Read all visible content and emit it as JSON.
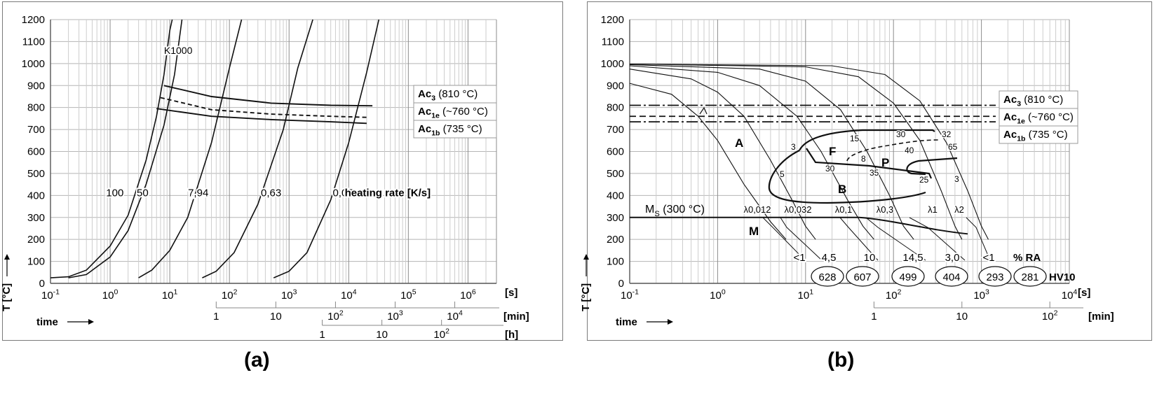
{
  "chart_data": [
    {
      "type": "line",
      "caption": "(a)",
      "ylabel": "T [°C]",
      "xlabel": "time",
      "ylim": [
        0,
        1200
      ],
      "yticks": [
        0,
        100,
        200,
        300,
        400,
        500,
        600,
        700,
        800,
        900,
        1000,
        1100,
        1200
      ],
      "xscale": "log",
      "xlim_s": [
        0.1,
        3000000
      ],
      "xtick_labels": [
        [
          "10",
          "-1"
        ],
        [
          "10",
          "0"
        ],
        [
          "10",
          "1"
        ],
        [
          "10",
          "2"
        ],
        [
          "10",
          "3"
        ],
        [
          "10",
          "4"
        ],
        [
          "10",
          "5"
        ],
        [
          "10",
          "6"
        ]
      ],
      "xunit": "[s]",
      "min_axis": {
        "ticks": [
          "1",
          "10",
          "10^2",
          "10^3",
          "10^4"
        ],
        "unit": "[min]"
      },
      "h_axis": {
        "ticks": [
          "1",
          "10",
          "10^2"
        ],
        "unit": "[h]"
      },
      "series": [
        {
          "name": "100",
          "points": [
            [
              0.1,
              25
            ],
            [
              0.2,
              30
            ],
            [
              0.4,
              60
            ],
            [
              1,
              170
            ],
            [
              2,
              310
            ],
            [
              4,
              560
            ],
            [
              6,
              760
            ],
            [
              8,
              950
            ],
            [
              10,
              1150
            ],
            [
              11,
              1200
            ]
          ]
        },
        {
          "name": "50",
          "points": [
            [
              0.2,
              25
            ],
            [
              0.4,
              40
            ],
            [
              1,
              120
            ],
            [
              2,
              240
            ],
            [
              4,
              450
            ],
            [
              8,
              720
            ],
            [
              12,
              950
            ],
            [
              16,
              1200
            ]
          ]
        },
        {
          "name": "7,94",
          "points": [
            [
              3,
              25
            ],
            [
              5,
              60
            ],
            [
              10,
              150
            ],
            [
              20,
              300
            ],
            [
              50,
              640
            ],
            [
              100,
              980
            ],
            [
              160,
              1200
            ]
          ]
        },
        {
          "name": "0,63",
          "points": [
            [
              35,
              25
            ],
            [
              60,
              55
            ],
            [
              120,
              140
            ],
            [
              300,
              360
            ],
            [
              800,
              700
            ],
            [
              1400,
              980
            ],
            [
              2500,
              1200
            ]
          ]
        },
        {
          "name": "0,05",
          "points": [
            [
              550,
              25
            ],
            [
              1000,
              55
            ],
            [
              2000,
              140
            ],
            [
              5000,
              380
            ],
            [
              10000,
              640
            ],
            [
              20000,
              960
            ],
            [
              32000,
              1200
            ]
          ]
        }
      ],
      "series_labels": [
        "100",
        "50",
        "7,94",
        "0,63",
        "0,05"
      ],
      "rate_label": "heating rate [K/s]",
      "curve_label": "K1000",
      "transformations": [
        {
          "name": "Ac3",
          "points": [
            [
              8,
              900
            ],
            [
              50,
              850
            ],
            [
              500,
              820
            ],
            [
              5000,
              810
            ],
            [
              25000,
              808
            ]
          ]
        },
        {
          "name": "Ac1e",
          "dashed": true,
          "points": [
            [
              7,
              845
            ],
            [
              50,
              790
            ],
            [
              500,
              770
            ],
            [
              5000,
              760
            ],
            [
              22000,
              755
            ]
          ]
        },
        {
          "name": "Ac1b",
          "points": [
            [
              6,
              795
            ],
            [
              50,
              760
            ],
            [
              500,
              745
            ],
            [
              5000,
              735
            ],
            [
              20000,
              728
            ]
          ]
        }
      ],
      "legend": [
        {
          "main": "Ac",
          "sub": "3",
          "value": "(810 °C)"
        },
        {
          "main": "Ac",
          "sub": "1e",
          "value": "(~760 °C)"
        },
        {
          "main": "Ac",
          "sub": "1b",
          "value": "(735 °C)"
        }
      ]
    },
    {
      "type": "line",
      "caption": "(b)",
      "ylabel": "T [°C]",
      "xlabel": "time",
      "ylim": [
        0,
        1200
      ],
      "yticks": [
        0,
        100,
        200,
        300,
        400,
        500,
        600,
        700,
        800,
        900,
        1000,
        1100,
        1200
      ],
      "xscale": "log",
      "xlim_s": [
        0.1,
        10000
      ],
      "xtick_labels": [
        [
          "10",
          "-1"
        ],
        [
          "10",
          "0"
        ],
        [
          "10",
          "1"
        ],
        [
          "10",
          "2"
        ],
        [
          "10",
          "3"
        ],
        [
          "10",
          "4"
        ]
      ],
      "xunit": "[s]",
      "min_axis": {
        "ticks": [
          "1",
          "10",
          "10^2"
        ],
        "unit": "[min]"
      },
      "regions": [
        "A",
        "F",
        "P",
        "B",
        "M"
      ],
      "ms_label": {
        "main": "M",
        "sub": "S",
        "value": "(300 °C)"
      },
      "lambda_labels": [
        "λ0,012",
        "λ0,032",
        "λ0,1",
        "λ0,3",
        "λ1",
        "λ2"
      ],
      "ra_values": [
        "<1",
        "4,5",
        "10",
        "14,5",
        "3,0",
        "<1"
      ],
      "ra_unit": "% RA",
      "hv_values": [
        "628",
        "607",
        "499",
        "404",
        "293",
        "281"
      ],
      "hv_unit": "HV10",
      "phase_numbers": [
        "3",
        "15",
        "30",
        "32",
        "8",
        "40",
        "65",
        "30",
        "35",
        "5",
        "25",
        "3"
      ],
      "cooling_curves": [
        {
          "name": "λ0,012",
          "points": [
            [
              0.1,
              910
            ],
            [
              0.3,
              860
            ],
            [
              0.6,
              760
            ],
            [
              1,
              650
            ],
            [
              2,
              450
            ],
            [
              4,
              280
            ],
            [
              6,
              200
            ]
          ]
        },
        {
          "name": "λ0,032",
          "points": [
            [
              0.1,
              975
            ],
            [
              0.5,
              930
            ],
            [
              1,
              870
            ],
            [
              2,
              760
            ],
            [
              4,
              560
            ],
            [
              7,
              380
            ],
            [
              10,
              260
            ],
            [
              13,
              200
            ]
          ]
        },
        {
          "name": "λ0,1",
          "points": [
            [
              0.1,
              990
            ],
            [
              1,
              960
            ],
            [
              3,
              900
            ],
            [
              8,
              760
            ],
            [
              15,
              600
            ],
            [
              30,
              380
            ],
            [
              45,
              260
            ],
            [
              60,
              200
            ]
          ]
        },
        {
          "name": "λ0,3",
          "points": [
            [
              0.1,
              995
            ],
            [
              3,
              975
            ],
            [
              10,
              920
            ],
            [
              25,
              790
            ],
            [
              50,
              600
            ],
            [
              90,
              400
            ],
            [
              130,
              260
            ],
            [
              170,
              200
            ]
          ]
        },
        {
          "name": "λ1",
          "points": [
            [
              0.1,
              998
            ],
            [
              10,
              985
            ],
            [
              40,
              940
            ],
            [
              100,
              820
            ],
            [
              200,
              650
            ],
            [
              350,
              420
            ],
            [
              500,
              260
            ],
            [
              600,
              200
            ]
          ]
        },
        {
          "name": "λ2",
          "points": [
            [
              0.1,
              998
            ],
            [
              20,
              990
            ],
            [
              80,
              950
            ],
            [
              200,
              830
            ],
            [
              400,
              640
            ],
            [
              700,
              420
            ],
            [
              1000,
              260
            ],
            [
              1200,
              200
            ]
          ]
        }
      ],
      "transformations": [
        {
          "name": "Ac3",
          "y": 810
        },
        {
          "name": "Ac1e",
          "y": 760
        },
        {
          "name": "Ac1b",
          "y": 735
        }
      ],
      "legend": [
        {
          "main": "Ac",
          "sub": "3",
          "value": "(810 °C)"
        },
        {
          "main": "Ac",
          "sub": "1e",
          "value": "(~760 °C)"
        },
        {
          "main": "Ac",
          "sub": "1b",
          "value": "(735 °C)"
        }
      ]
    }
  ]
}
